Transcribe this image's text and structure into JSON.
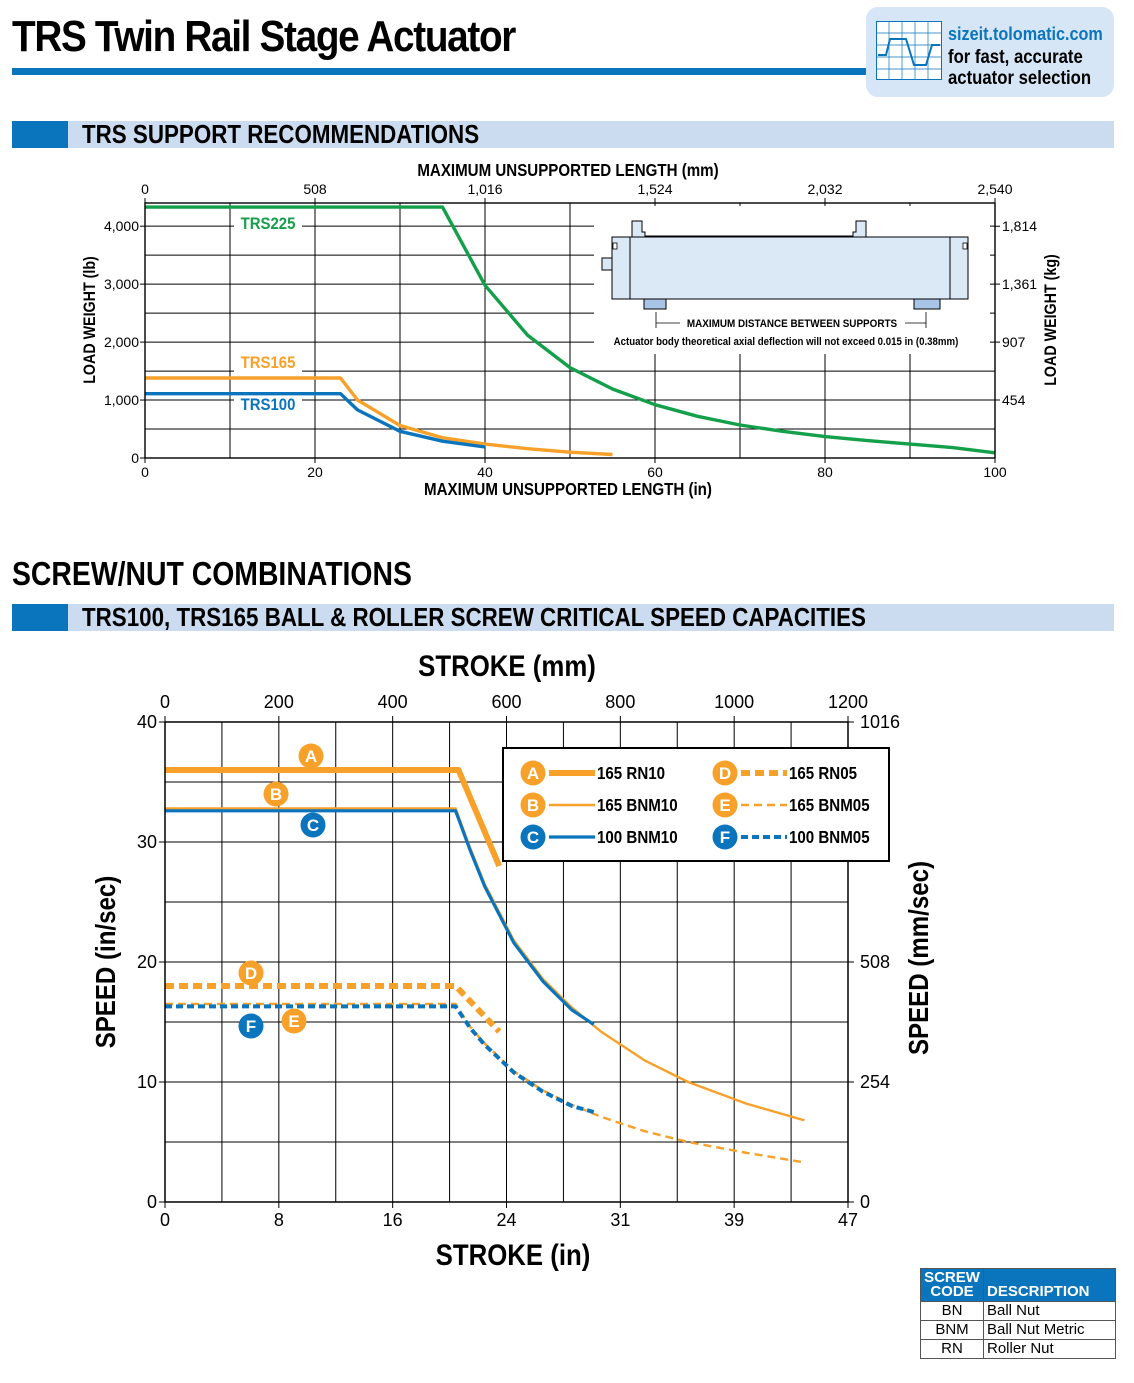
{
  "header": {
    "title": "TRS Twin Rail Stage Actuator",
    "promo": {
      "url": "sizeit.tolomatic.com",
      "line1": "for fast, accurate",
      "line2": "actuator selection",
      "icon": "chart-graph-icon"
    }
  },
  "section_support": {
    "title": "TRS SUPPORT RECOMMENDATIONS",
    "inset": {
      "dimension_label": "MAXIMUM DISTANCE BETWEEN SUPPORTS",
      "note": "Actuator body theoretical axial deflection will not exceed 0.015 in (0.38mm)"
    }
  },
  "section_screw": {
    "heading": "SCREW/NUT COMBINATIONS",
    "title": "TRS100, TRS165 BALL & ROLLER SCREW CRITICAL SPEED CAPACITIES"
  },
  "colors": {
    "green": "#14a04a",
    "orange": "#f7a12a",
    "blue": "#0a74bd"
  },
  "chart_data": [
    {
      "type": "line",
      "xlabel": "MAXIMUM UNSUPPORTED LENGTH (in)",
      "x2label": "MAXIMUM UNSUPPORTED LENGTH (mm)",
      "ylabel": "LOAD WEIGHT (lb)",
      "y2label": "LOAD WEIGHT (kg)",
      "xlim": [
        0,
        100
      ],
      "ylim": [
        0,
        4400
      ],
      "x_ticks": [
        "0",
        "20",
        "40",
        "60",
        "80",
        "100"
      ],
      "x2_ticks": [
        "0",
        "508",
        "1,016",
        "1,524",
        "2,032",
        "2,540"
      ],
      "y_ticks": [
        "0",
        "1,000",
        "2,000",
        "3,000",
        "4,000"
      ],
      "y2_ticks": [
        "454",
        "907",
        "1,361",
        "1,814"
      ],
      "grid": true,
      "series": [
        {
          "name": "TRS225",
          "color": "#14a04a",
          "x": [
            0,
            35,
            40,
            45,
            50,
            55,
            60,
            65,
            70,
            75,
            80,
            85,
            90,
            95,
            100
          ],
          "y": [
            4330,
            4330,
            2980,
            2120,
            1560,
            1190,
            920,
            720,
            570,
            460,
            370,
            300,
            240,
            180,
            90
          ]
        },
        {
          "name": "TRS165",
          "color": "#f7a12a",
          "x": [
            0,
            23,
            25,
            30,
            35,
            40,
            45,
            50,
            55
          ],
          "y": [
            1380,
            1380,
            1000,
            560,
            350,
            240,
            160,
            100,
            60
          ]
        },
        {
          "name": "TRS100",
          "color": "#0a74bd",
          "x": [
            0,
            23,
            25,
            30,
            35,
            40
          ],
          "y": [
            1110,
            1110,
            830,
            460,
            290,
            190
          ]
        }
      ]
    },
    {
      "type": "line",
      "title": "",
      "xlabel": "STROKE (in)",
      "x2label": "STROKE (mm)",
      "ylabel": "SPEED (in/sec)",
      "y2label": "SPEED (mm/sec)",
      "xlim": [
        0,
        47
      ],
      "ylim": [
        0,
        40
      ],
      "x_ticks": [
        "0",
        "8",
        "16",
        "24",
        "31",
        "39",
        "47"
      ],
      "x2_ticks": [
        "0",
        "200",
        "400",
        "600",
        "800",
        "1000",
        "1200"
      ],
      "y_ticks": [
        "0",
        "10",
        "20",
        "30",
        "40"
      ],
      "y2_ticks": [
        "0",
        "254",
        "508",
        "1016"
      ],
      "grid": true,
      "legend_position": "top-right",
      "series": [
        {
          "code": "A",
          "name": "165 RN10",
          "color": "#f7a12a",
          "style": "thick",
          "x": [
            0,
            20.2,
            23
          ],
          "y": [
            36,
            36,
            28
          ]
        },
        {
          "code": "B",
          "name": "165 BNM10",
          "color": "#f7a12a",
          "style": "thin",
          "x": [
            0,
            20,
            21,
            22,
            24,
            26,
            28,
            30,
            33,
            36,
            40,
            44
          ],
          "y": [
            32.8,
            32.8,
            29.5,
            26.5,
            21.8,
            18.6,
            16.2,
            14.2,
            11.8,
            10,
            8.2,
            6.8
          ]
        },
        {
          "code": "C",
          "name": "100 BNM10",
          "color": "#0a74bd",
          "style": "medium",
          "x": [
            0,
            20,
            21,
            22,
            24,
            26,
            28,
            29.5
          ],
          "y": [
            32.6,
            32.6,
            29.3,
            26.3,
            21.6,
            18.4,
            16,
            14.8
          ]
        },
        {
          "code": "D",
          "name": "165 RN05",
          "color": "#f7a12a",
          "style": "thick-dashed",
          "x": [
            0,
            20,
            23
          ],
          "y": [
            18,
            18,
            14.2
          ]
        },
        {
          "code": "E",
          "name": "165 BNM05",
          "color": "#f7a12a",
          "style": "thin-dashed",
          "x": [
            0,
            20,
            21,
            22,
            24,
            26,
            28,
            30,
            33,
            36,
            40,
            44
          ],
          "y": [
            16.5,
            16.5,
            14.6,
            13.2,
            10.9,
            9.3,
            8.1,
            7.1,
            5.9,
            5,
            4.1,
            3.3
          ]
        },
        {
          "code": "F",
          "name": "100 BNM05",
          "color": "#0a74bd",
          "style": "medium-dashed",
          "x": [
            0,
            20,
            21,
            22,
            24,
            26,
            28,
            29.5
          ],
          "y": [
            16.3,
            16.3,
            14.5,
            13.1,
            10.8,
            9.2,
            8,
            7.5
          ]
        }
      ]
    }
  ],
  "screw_codes": {
    "headers": [
      "SCREW CODE",
      "DESCRIPTION"
    ],
    "rows": [
      {
        "code": "BN",
        "description": "Ball Nut"
      },
      {
        "code": "BNM",
        "description": "Ball Nut Metric"
      },
      {
        "code": "RN",
        "description": "Roller Nut"
      }
    ]
  }
}
